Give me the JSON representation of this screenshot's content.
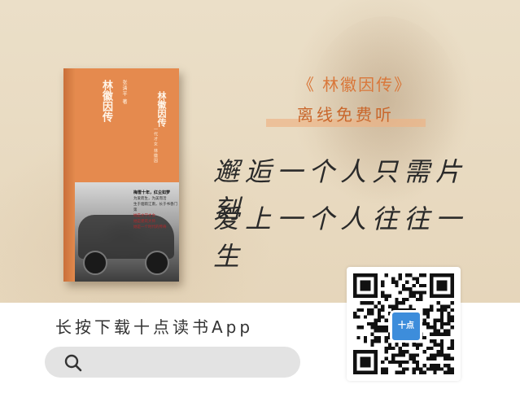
{
  "book": {
    "title": "林徽因传",
    "author": "张清平 著",
    "cover_title": "林徽因传",
    "cover_subtitle": "一代才女 林徽因",
    "blurb_headline": "梅雪十年，红尘如梦",
    "blurb_lines": [
      "为爱而生，为美而活",
      "生于烟雨江南，长于书香门第",
      "她是文学才女",
      "她是建筑大师",
      "她是一个时代的传奇"
    ]
  },
  "promo": {
    "title": "《 林徽因传》",
    "subtitle": "离线免费听",
    "line1": "邂逅一个人只需片刻",
    "line2": "爱上一个人往往一生"
  },
  "footer": {
    "download_label": "长按下载十点读书App",
    "search_placeholder": ""
  },
  "qr": {
    "logo_text": "十点"
  },
  "icons": {
    "search": "search-icon"
  },
  "colors": {
    "accent": "#d9773a",
    "book_cover": "#e58a4e",
    "qr_logo": "#3d8ddb"
  }
}
